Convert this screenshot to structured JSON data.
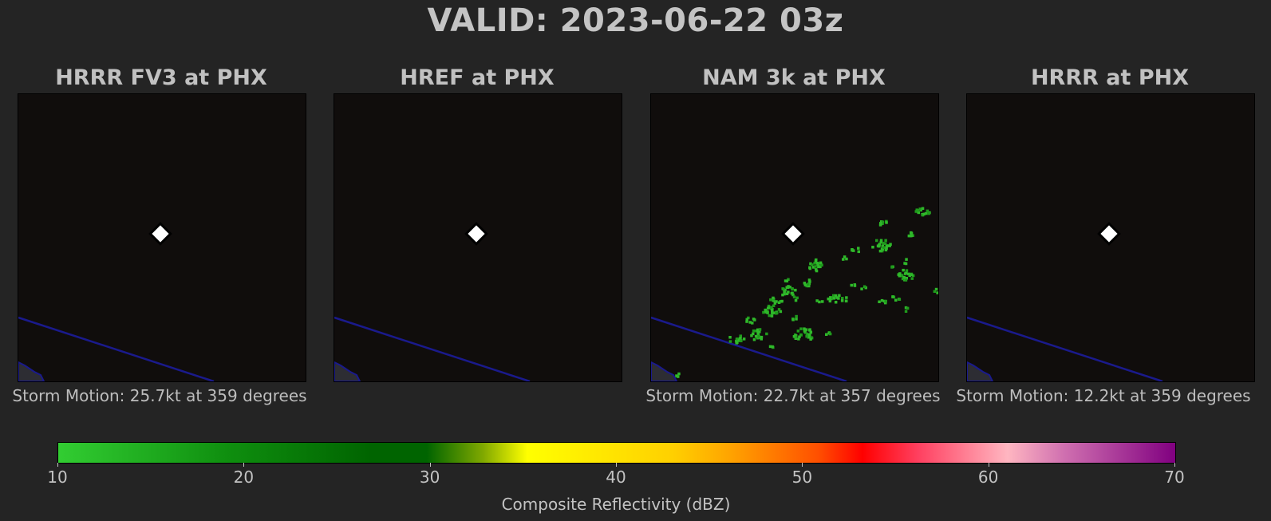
{
  "title": "VALID: 2023-06-22 03z",
  "panels": [
    {
      "title": "HRRR FV3 at PHX",
      "storm_motion": "Storm Motion: 25.7kt at 359 degrees"
    },
    {
      "title": "HREF at PHX",
      "storm_motion": ""
    },
    {
      "title": "NAM 3k at PHX",
      "storm_motion": "Storm Motion: 22.7kt at 357 degrees"
    },
    {
      "title": "HRRR at PHX",
      "storm_motion": "Storm Motion: 12.2kt at 359 degrees"
    }
  ],
  "colorbar": {
    "label": "Composite Reflectivity (dBZ)",
    "ticks": [
      "10",
      "20",
      "30",
      "40",
      "50",
      "60",
      "70"
    ]
  },
  "colors": {
    "background": "#242424",
    "map_background": "#100d0c",
    "boundary_line": "#1a1a8c",
    "station_marker": "#ffffff",
    "reflectivity_green": "#2fb82a"
  },
  "chart_data": {
    "type": "heatmap",
    "variable": "Composite Reflectivity (dBZ)",
    "scale_range": [
      10,
      70
    ],
    "panels_with_echoes": [
      "NAM 3k at PHX"
    ],
    "panels_without_echoes": [
      "HRRR FV3 at PHX",
      "HREF at PHX",
      "HRRR at PHX"
    ]
  }
}
